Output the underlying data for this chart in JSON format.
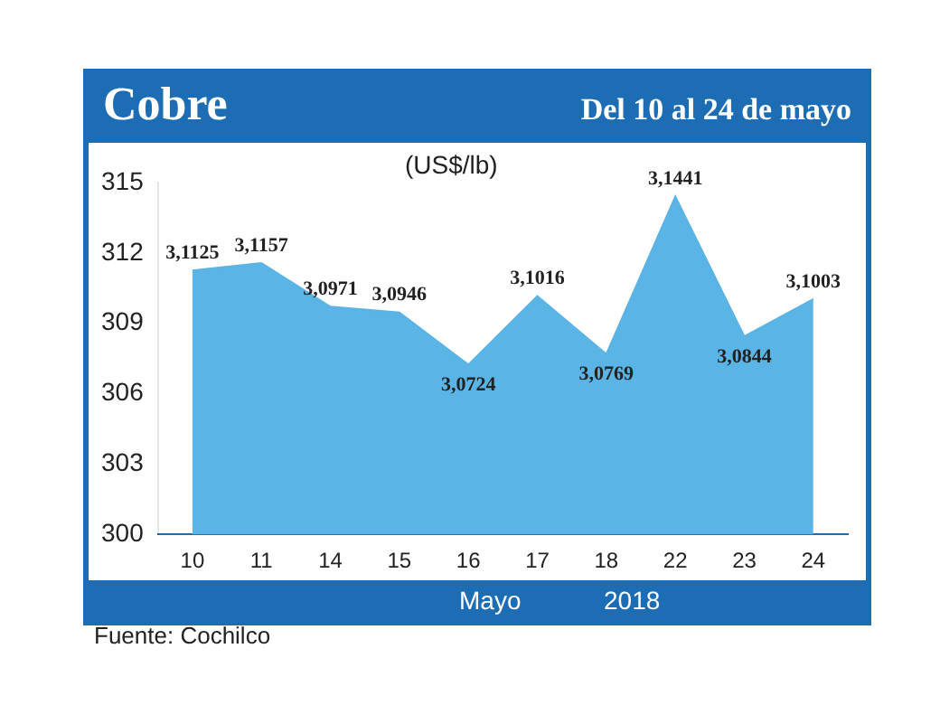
{
  "chart_data": {
    "type": "area",
    "title": "Cobre",
    "subtitle": "Del 10 al 24 de mayo",
    "ylabel": "(US$/lb)",
    "categories": [
      "10",
      "11",
      "14",
      "15",
      "16",
      "17",
      "18",
      "22",
      "23",
      "24"
    ],
    "values": [
      311.25,
      311.57,
      309.71,
      309.46,
      307.24,
      310.16,
      307.69,
      314.41,
      308.44,
      310.03
    ],
    "value_labels": [
      "3,1125",
      "3,1157",
      "3,0971",
      "3,0946",
      "3,0724",
      "3,1016",
      "3,0769",
      "3,1441",
      "3,0844",
      "3,1003"
    ],
    "color": "#5ab4e5",
    "ylim": [
      300,
      315
    ],
    "yticks": [
      300,
      303,
      306,
      309,
      312,
      315
    ],
    "grid": false,
    "legend": false,
    "annotations": [
      "Mayo",
      "2018",
      "Fuente: Cochilco"
    ]
  }
}
